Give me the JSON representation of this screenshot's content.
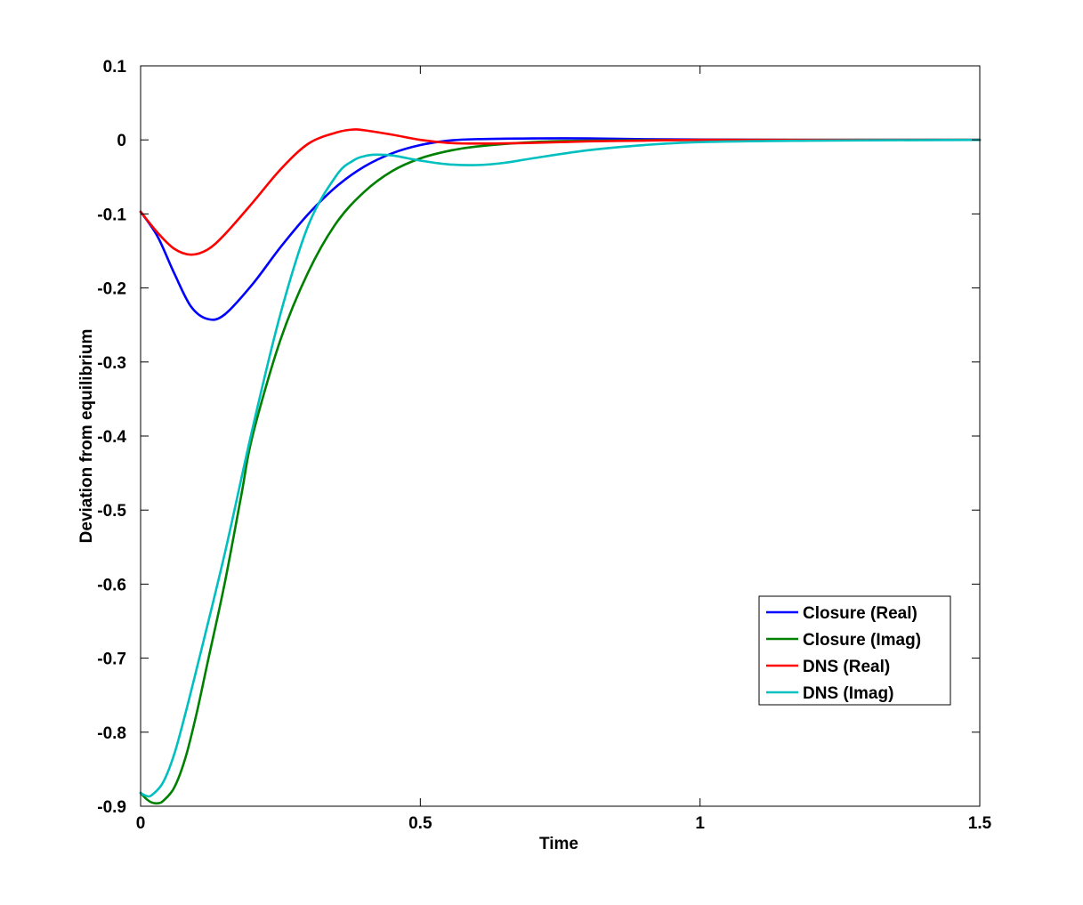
{
  "chart_data": {
    "type": "line",
    "title": "",
    "xlabel": "Time",
    "ylabel": "Deviation from equilibrium",
    "xlim": [
      0,
      1.5
    ],
    "ylim": [
      -0.9,
      0.1
    ],
    "xticks": [
      0,
      0.5,
      1,
      1.5
    ],
    "xtick_labels": [
      "0",
      "0.5",
      "1",
      "1.5"
    ],
    "yticks": [
      0.1,
      0,
      -0.1,
      -0.2,
      -0.3,
      -0.4,
      -0.5,
      -0.6,
      -0.7,
      -0.8,
      -0.9
    ],
    "ytick_labels": [
      "0.1",
      "0",
      "-0.1",
      "-0.2",
      "-0.3",
      "-0.4",
      "-0.5",
      "-0.6",
      "-0.7",
      "-0.8",
      "-0.9"
    ],
    "grid": false,
    "legend_position": "bottom-right",
    "series": [
      {
        "name": "Closure (Real)",
        "color": "#0000ff",
        "x": [
          0,
          0.03,
          0.06,
          0.09,
          0.12,
          0.15,
          0.2,
          0.25,
          0.3,
          0.35,
          0.4,
          0.45,
          0.5,
          0.55,
          0.6,
          0.7,
          0.8,
          0.9,
          1.0,
          1.2,
          1.5
        ],
        "y": [
          -0.097,
          -0.13,
          -0.18,
          -0.225,
          -0.242,
          -0.236,
          -0.195,
          -0.145,
          -0.1,
          -0.063,
          -0.036,
          -0.018,
          -0.007,
          -0.001,
          0.001,
          0.002,
          0.002,
          0.001,
          0.0005,
          0.0,
          0.0
        ]
      },
      {
        "name": "Closure (Imag)",
        "color": "#008000",
        "x": [
          0,
          0.01,
          0.02,
          0.03,
          0.04,
          0.06,
          0.08,
          0.1,
          0.12,
          0.15,
          0.18,
          0.2,
          0.25,
          0.3,
          0.35,
          0.4,
          0.45,
          0.5,
          0.55,
          0.6,
          0.7,
          0.8,
          1.0,
          1.2,
          1.5
        ],
        "y": [
          -0.882,
          -0.89,
          -0.895,
          -0.896,
          -0.893,
          -0.875,
          -0.835,
          -0.775,
          -0.705,
          -0.6,
          -0.48,
          -0.4,
          -0.27,
          -0.178,
          -0.112,
          -0.07,
          -0.042,
          -0.025,
          -0.015,
          -0.009,
          -0.003,
          -0.001,
          0.0,
          0.0,
          0.0
        ]
      },
      {
        "name": "DNS (Real)",
        "color": "#ff0000",
        "x": [
          0,
          0.03,
          0.06,
          0.09,
          0.12,
          0.15,
          0.2,
          0.25,
          0.3,
          0.35,
          0.38,
          0.4,
          0.45,
          0.5,
          0.55,
          0.6,
          0.7,
          0.8,
          0.9,
          1.0,
          1.2,
          1.5
        ],
        "y": [
          -0.097,
          -0.125,
          -0.147,
          -0.155,
          -0.148,
          -0.128,
          -0.085,
          -0.04,
          -0.005,
          0.01,
          0.014,
          0.013,
          0.007,
          0.0,
          -0.004,
          -0.005,
          -0.004,
          -0.002,
          -0.001,
          0.0,
          0.0,
          0.0
        ]
      },
      {
        "name": "DNS (Imag)",
        "color": "#00bfbf",
        "x": [
          0,
          0.01,
          0.02,
          0.04,
          0.06,
          0.08,
          0.1,
          0.15,
          0.2,
          0.25,
          0.3,
          0.35,
          0.38,
          0.4,
          0.42,
          0.45,
          0.5,
          0.55,
          0.6,
          0.65,
          0.7,
          0.8,
          0.9,
          1.0,
          1.2,
          1.5
        ],
        "y": [
          -0.882,
          -0.886,
          -0.885,
          -0.868,
          -0.83,
          -0.775,
          -0.715,
          -0.56,
          -0.39,
          -0.235,
          -0.115,
          -0.048,
          -0.028,
          -0.022,
          -0.02,
          -0.021,
          -0.028,
          -0.033,
          -0.034,
          -0.031,
          -0.025,
          -0.014,
          -0.007,
          -0.003,
          -0.001,
          0.0
        ]
      }
    ]
  }
}
